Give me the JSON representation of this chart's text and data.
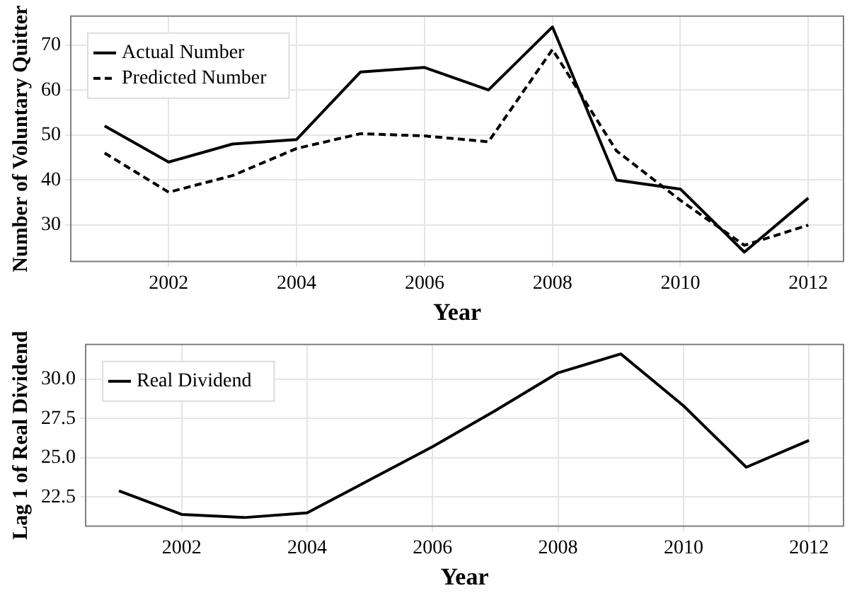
{
  "chart_data": [
    {
      "type": "line",
      "xlabel": "Year",
      "ylabel": "Number of Voluntary Quitter",
      "x": [
        2001,
        2002,
        2003,
        2004,
        2005,
        2006,
        2007,
        2008,
        2009,
        2010,
        2011,
        2012
      ],
      "series": [
        {
          "name": "Actual Number",
          "color": "#000000",
          "line_style": "solid",
          "values": [
            52,
            44,
            48,
            49,
            64,
            65,
            60,
            74,
            40,
            38,
            24,
            36
          ]
        },
        {
          "name": "Predicted Number",
          "color": "#000000",
          "line_style": "dashed",
          "values": [
            46,
            37.3,
            41,
            47,
            50.3,
            49.8,
            48.5,
            69,
            46.5,
            35.5,
            25.5,
            30
          ]
        }
      ],
      "xlim": [
        2000.47,
        2012.55
      ],
      "xticks": [
        2002,
        2004,
        2006,
        2008,
        2010,
        2012
      ],
      "ylim": [
        21.9,
        76.4
      ],
      "yticks": [
        30,
        40,
        50,
        60,
        70
      ],
      "grid": true,
      "legend": "top left",
      "marker": "none"
    },
    {
      "type": "line",
      "xlabel": "Year",
      "ylabel": "Lag 1 of Real Dividend",
      "x": [
        2001,
        2002,
        2003,
        2004,
        2005,
        2006,
        2007,
        2008,
        2009,
        2010,
        2011,
        2012
      ],
      "series": [
        {
          "name": "Real Dividend",
          "color": "#000000",
          "line_style": "solid",
          "values": [
            22.9,
            21.4,
            21.2,
            21.5,
            23.6,
            25.7,
            28.0,
            30.4,
            31.6,
            28.3,
            24.4,
            26.1
          ]
        }
      ],
      "xlim": [
        2000.47,
        2012.55
      ],
      "xticks": [
        2002,
        2004,
        2006,
        2008,
        2010,
        2012
      ],
      "ylim": [
        20.65,
        32.2
      ],
      "yticks": [
        {
          "value": 22.5,
          "label": "22.5"
        },
        {
          "value": 25,
          "label": "25.0"
        },
        {
          "value": 27.5,
          "label": "27.5"
        },
        {
          "value": 30,
          "label": "30.0"
        }
      ],
      "grid": true,
      "legend": "top left",
      "marker": "none"
    }
  ]
}
